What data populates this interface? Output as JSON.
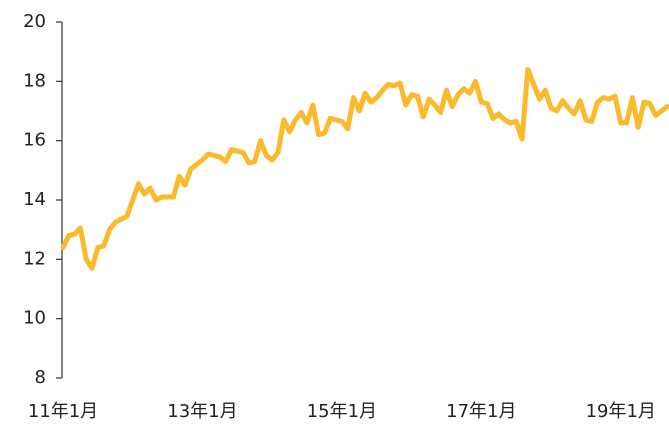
{
  "chart_data": {
    "type": "line",
    "categories": [
      "11年1月",
      null,
      null,
      null,
      null,
      null,
      null,
      null,
      null,
      null,
      null,
      null,
      null,
      null,
      null,
      null,
      null,
      null,
      null,
      null,
      null,
      null,
      null,
      null,
      "13年1月",
      null,
      null,
      null,
      null,
      null,
      null,
      null,
      null,
      null,
      null,
      null,
      null,
      null,
      null,
      null,
      null,
      null,
      null,
      null,
      null,
      null,
      null,
      null,
      "15年1月",
      null,
      null,
      null,
      null,
      null,
      null,
      null,
      null,
      null,
      null,
      null,
      null,
      null,
      null,
      null,
      null,
      null,
      null,
      null,
      null,
      null,
      null,
      null,
      "17年1月",
      null,
      null,
      null,
      null,
      null,
      null,
      null,
      null,
      null,
      null,
      null,
      null,
      null,
      null,
      null,
      null,
      null,
      null,
      null,
      null,
      null,
      null,
      null,
      "19年1月",
      null,
      null,
      null,
      null,
      null,
      null,
      null,
      null
    ],
    "values": [
      12.4,
      12.8,
      12.85,
      13.05,
      12.0,
      11.7,
      12.4,
      12.45,
      13.0,
      13.25,
      13.35,
      13.45,
      14.0,
      14.55,
      14.2,
      14.4,
      14.0,
      14.1,
      14.1,
      14.1,
      14.8,
      14.5,
      15.05,
      15.2,
      15.35,
      15.55,
      15.5,
      15.45,
      15.3,
      15.7,
      15.65,
      15.6,
      15.25,
      15.3,
      16.0,
      15.5,
      15.35,
      15.6,
      16.7,
      16.3,
      16.7,
      16.95,
      16.6,
      17.2,
      16.2,
      16.25,
      16.75,
      16.7,
      16.65,
      16.4,
      17.45,
      17.0,
      17.6,
      17.3,
      17.45,
      17.7,
      17.9,
      17.85,
      17.95,
      17.2,
      17.55,
      17.5,
      16.8,
      17.4,
      17.2,
      16.95,
      17.7,
      17.15,
      17.55,
      17.75,
      17.6,
      18.0,
      17.3,
      17.25,
      16.75,
      16.9,
      16.7,
      16.6,
      16.65,
      16.05,
      18.4,
      17.9,
      17.4,
      17.7,
      17.1,
      17.0,
      17.35,
      17.1,
      16.9,
      17.35,
      16.7,
      16.65,
      17.3,
      17.45,
      17.4,
      17.5,
      16.6,
      16.6,
      17.45,
      16.45,
      17.3,
      17.25,
      16.85,
      17.0,
      17.15
    ],
    "color": "#fbb92c",
    "ylim": [
      8,
      20
    ],
    "yticks": [
      8,
      10,
      12,
      14,
      16,
      18,
      20
    ]
  }
}
